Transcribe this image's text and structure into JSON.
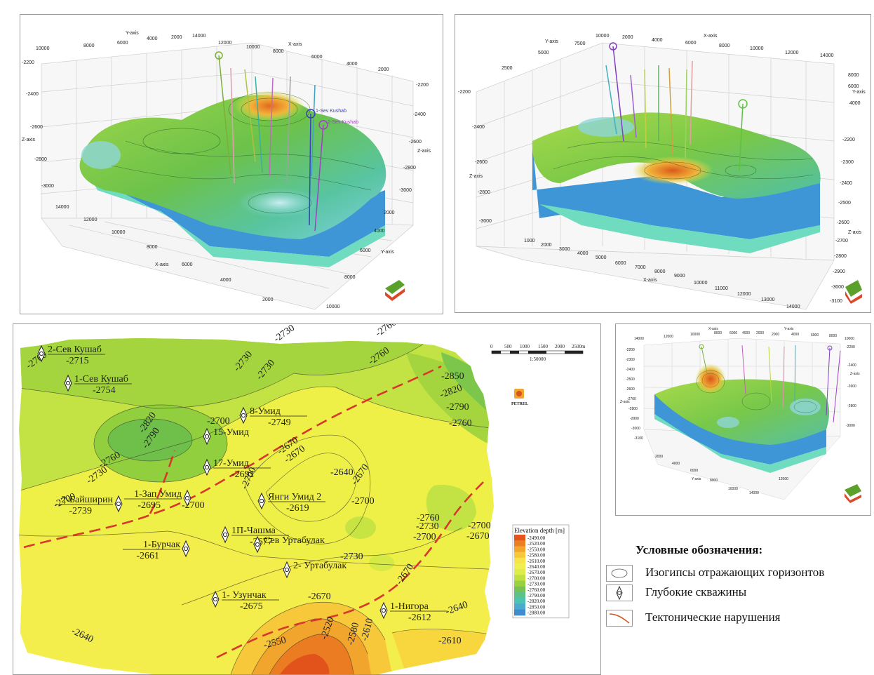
{
  "views3d": {
    "a": {
      "axes": {
        "y": "Y-axis",
        "x": "X-axis",
        "z": "Z-axis"
      },
      "top_y_ticks": [
        "10000",
        "8000",
        "6000",
        "4000",
        "2000",
        "14000"
      ],
      "top_x_ticks": [
        "12000",
        "10000",
        "8000",
        "6000",
        "4000",
        "2000"
      ],
      "z_left_ticks": [
        "-2200",
        "-2400",
        "-2600",
        "-2800",
        "-3000"
      ],
      "z_right_ticks": [
        "-2200",
        "-2400",
        "-2600",
        "-2800",
        "-3000"
      ],
      "bottom_x_ticks": [
        "14000",
        "12000",
        "10000",
        "8000",
        "6000",
        "4000",
        "2000"
      ],
      "bottom_y_ticks": [
        "2000",
        "4000",
        "6000",
        "8000",
        "10000"
      ],
      "well_labels": [
        "1-Sev Kushab",
        "2-Sev Kushab"
      ]
    },
    "b": {
      "axes": {
        "y": "Y-axis",
        "x": "X-axis",
        "z": "Z-axis"
      },
      "top_y_ticks": [
        "2500",
        "5000",
        "7500",
        "10000"
      ],
      "top_x_ticks": [
        "2000",
        "4000",
        "6000",
        "8000",
        "10000",
        "12000",
        "14000"
      ],
      "right_y_ticks": [
        "8000",
        "6000",
        "4000"
      ],
      "z_left_ticks": [
        "-2200",
        "-2400",
        "-2600",
        "-2800",
        "-3000"
      ],
      "z_right_ticks": [
        "-2200",
        "-2300",
        "-2400",
        "-2500",
        "-2600",
        "-2700",
        "-2800",
        "-2900",
        "-3000",
        "-3100"
      ],
      "bottom_x_ticks": [
        "1000",
        "2000",
        "3000",
        "4000",
        "5000",
        "6000",
        "7000",
        "8000",
        "9000",
        "10000",
        "11000",
        "12000",
        "13000",
        "14000"
      ]
    },
    "c": {
      "axes": {
        "y": "Y-axis",
        "x": "X-axis",
        "z": "Z-axis"
      },
      "top_x_ticks": [
        "14000",
        "12000",
        "10000",
        "8000",
        "6000",
        "4000",
        "2000"
      ],
      "top_y_ticks": [
        "2000",
        "4000",
        "6000",
        "8000",
        "10000"
      ],
      "z_left_ticks": [
        "-2200",
        "-2300",
        "-2400",
        "-2500",
        "-2600",
        "-2700",
        "-2800",
        "-2900",
        "-3000",
        "-3100"
      ],
      "z_right_ticks": [
        "-2200",
        "-2400",
        "-2600",
        "-2800",
        "-3000"
      ],
      "bottom_y_ticks": [
        "2000",
        "4000",
        "6000",
        "8000",
        "10000"
      ],
      "bottom_x_ticks": [
        "14000",
        "12000"
      ]
    }
  },
  "map": {
    "wells": [
      {
        "name": "2-Сев Кушаб",
        "depth": "-2715"
      },
      {
        "name": "1-Сев Кушаб",
        "depth": "-2754"
      },
      {
        "name": "8-Умид",
        "depth": "-2749"
      },
      {
        "name": "15-Умид",
        "depth": ""
      },
      {
        "name": "17-Умид",
        "depth": "-2691"
      },
      {
        "name": "1-Зап Умид",
        "depth": "-2695"
      },
      {
        "name": "2-Байширин",
        "depth": "-2739"
      },
      {
        "name": "Янги Умид 2",
        "depth": "-2619"
      },
      {
        "name": "1П-Чашма",
        "depth": "-2677"
      },
      {
        "name": "Сев Уртабулак",
        "depth": ""
      },
      {
        "name": "1-Бурчак",
        "depth": "-2661"
      },
      {
        "name": "2- Уртабулак",
        "depth": ""
      },
      {
        "name": "1- Узунчак",
        "depth": "-2675"
      },
      {
        "name": "1-Нигора",
        "depth": "-2612"
      }
    ],
    "contour_labels": [
      "-2760",
      "-2730",
      "-2760",
      "-2730",
      "-2730",
      "-2760",
      "-2850",
      "-2820",
      "-2790",
      "-2760",
      "-2820",
      "-2790",
      "-2700",
      "-2670",
      "-2760",
      "-2730",
      "-2640",
      "-2670",
      "-2700",
      "-2700",
      "-2700",
      "-2700",
      "-2670",
      "-2760",
      "-2730",
      "-2700",
      "-2700",
      "-2670",
      "-2730",
      "-2670",
      "-2670",
      "-2550",
      "-2520",
      "-2580",
      "-2610",
      "-2640",
      "-2610",
      "-2640"
    ],
    "scale": {
      "ticks": [
        "0",
        "500",
        "1000",
        "1500",
        "2000",
        "2500m"
      ],
      "ratio": "1:50000"
    },
    "logo_text": "PETREL",
    "colorbar": {
      "title": "Elevation depth [m]",
      "values": [
        "-2490.00",
        "-2520.00",
        "-2550.00",
        "-2580.00",
        "-2610.00",
        "-2640.00",
        "-2670.00",
        "-2700.00",
        "-2730.00",
        "-2760.00",
        "-2790.00",
        "-2820.00",
        "-2850.00",
        "-2880.00"
      ],
      "colors": [
        "#e4541e",
        "#ed7f22",
        "#f3a52c",
        "#f7c83a",
        "#f5e44a",
        "#eef04f",
        "#dcec4a",
        "#bfe040",
        "#9bd03f",
        "#78c24f",
        "#5cc28a",
        "#4cc4b4",
        "#4aaad0",
        "#3f8bd0"
      ]
    }
  },
  "legend": {
    "title": "Условные обозначения:",
    "items": [
      "Изогипсы отражающих горизонтов",
      "Глубокие скважины",
      "Тектонические нарушения"
    ]
  }
}
